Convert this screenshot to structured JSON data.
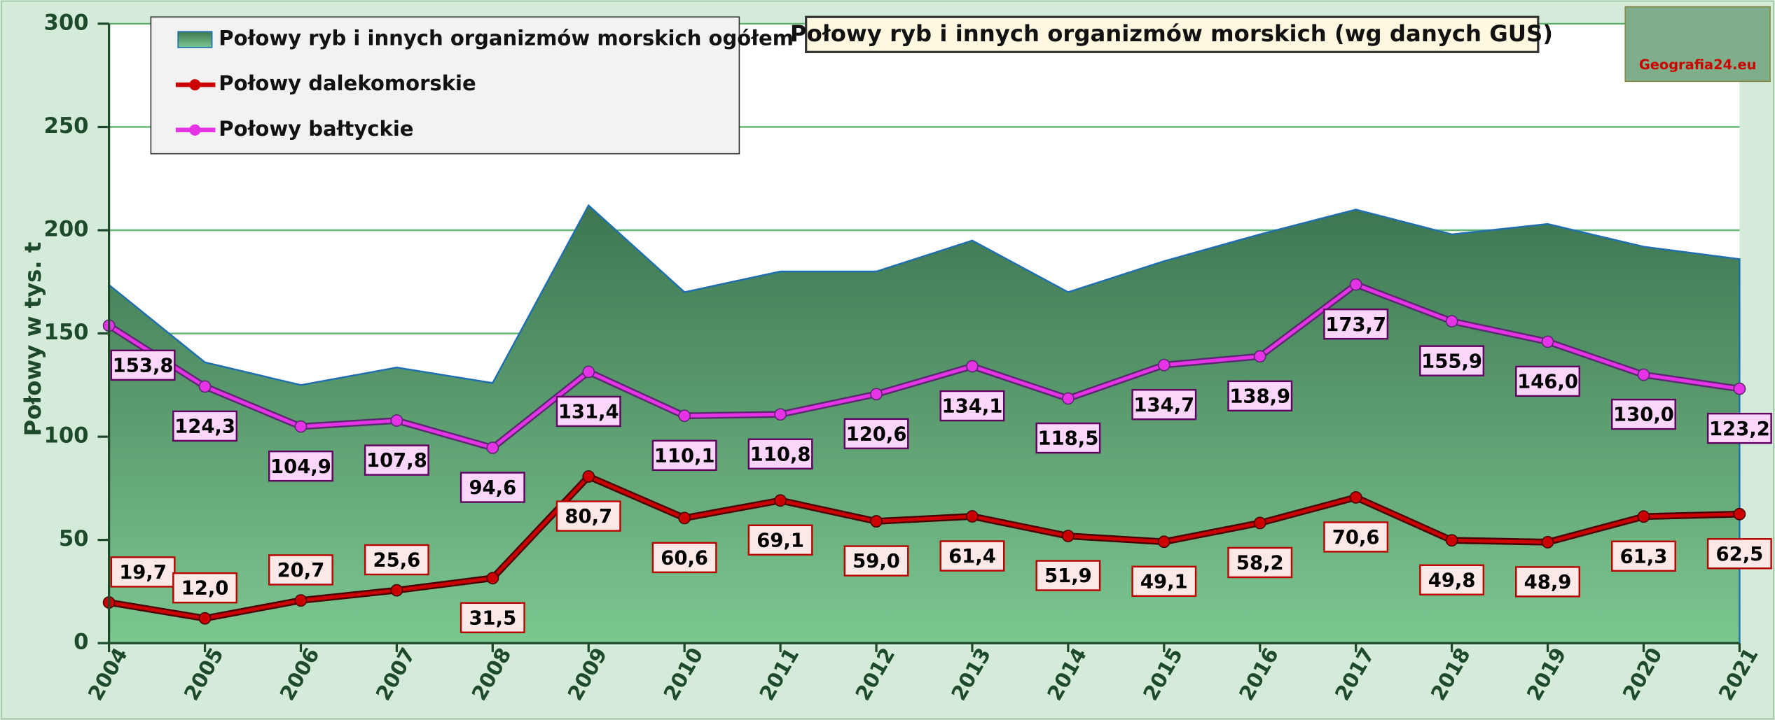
{
  "chart_data": {
    "type": "line",
    "title": "Połowy ryb i innych organizmów morskich (wg danych GUS)",
    "y_label": "Połowy w tys. t",
    "logo_text": "Geografia24.eu",
    "categories": [
      "2004",
      "2005",
      "2006",
      "2007",
      "2008",
      "2009",
      "2010",
      "2011",
      "2012",
      "2013",
      "2014",
      "2015",
      "2016",
      "2017",
      "2018",
      "2019",
      "2020",
      "2021"
    ],
    "series": [
      {
        "name": "Połowy ryb i innych organizmów morskich ogółem",
        "color": "#4a8a5c",
        "style": "area",
        "values": [
          173.5,
          136,
          125,
          133.5,
          126,
          212,
          170,
          180,
          180,
          195,
          170,
          185,
          198,
          210,
          198,
          203,
          192,
          186
        ]
      },
      {
        "name": "Połowy dalekomorskie",
        "color": "#cc0000",
        "style": "line",
        "values": [
          19.7,
          12.0,
          20.7,
          25.6,
          31.5,
          80.7,
          60.6,
          69.1,
          59.0,
          61.4,
          51.9,
          49.1,
          58.2,
          70.6,
          49.8,
          48.9,
          61.3,
          62.5
        ],
        "value_labels": [
          "19,7",
          "12,0",
          "20,7",
          "25,6",
          "31,5",
          "80,7",
          "60,6",
          "69,1",
          "59,0",
          "61,4",
          "51,9",
          "49,1",
          "58,2",
          "70,6",
          "49,8",
          "48,9",
          "61,3",
          "62,5"
        ]
      },
      {
        "name": "Połowy bałtyckie",
        "color": "#e633e6",
        "style": "line",
        "values": [
          153.8,
          124.3,
          104.9,
          107.8,
          94.6,
          131.4,
          110.1,
          110.8,
          120.6,
          134.1,
          118.5,
          134.7,
          138.9,
          173.7,
          155.9,
          146.0,
          130.0,
          123.2
        ],
        "value_labels": [
          "153,8",
          "124,3",
          "104,9",
          "107,8",
          "94,6",
          "131,4",
          "110,1",
          "110,8",
          "120,6",
          "134,1",
          "118,5",
          "134,7",
          "138,9",
          "173,7",
          "155,9",
          "146,0",
          "130,0",
          "123,2"
        ]
      }
    ],
    "ylim": [
      0,
      300
    ],
    "yticks": [
      0,
      50,
      100,
      150,
      200,
      250,
      300
    ],
    "grid": true
  }
}
